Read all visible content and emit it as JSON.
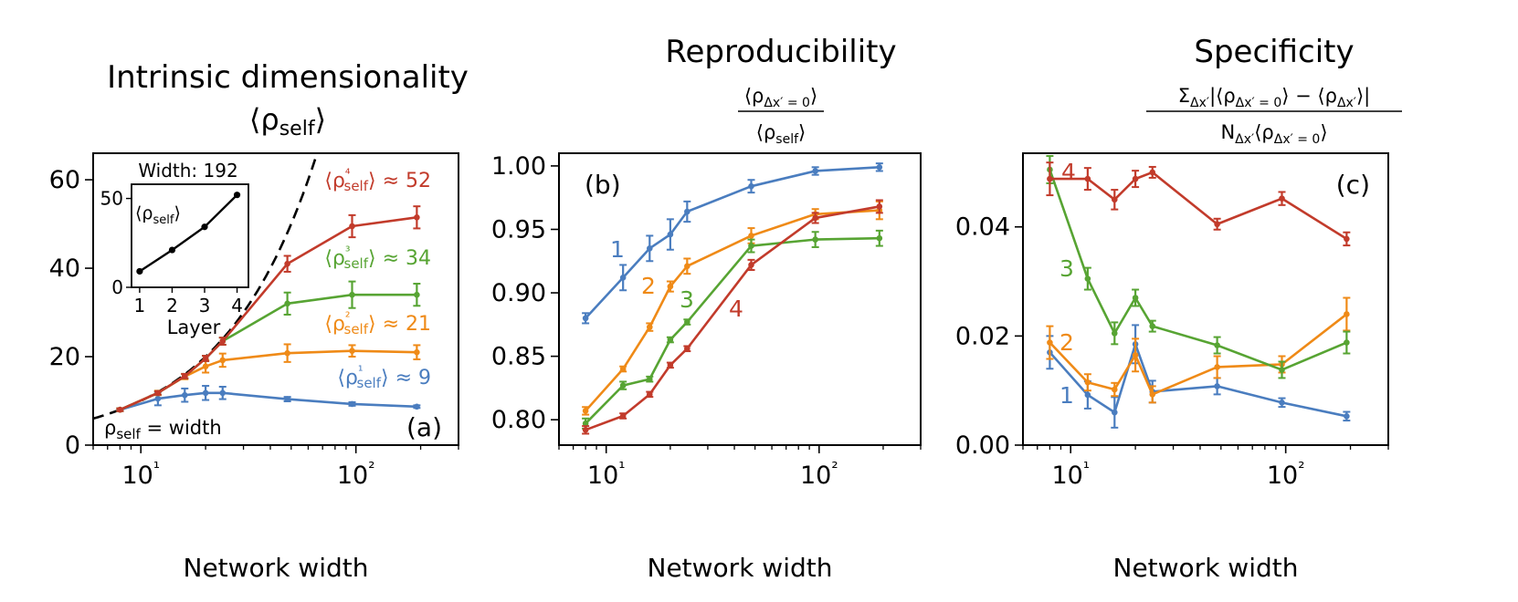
{
  "colors": {
    "layer1": "#4a7dbf",
    "layer2": "#ef8a17",
    "layer3": "#57a433",
    "layer4": "#c23b2b"
  },
  "chart_data": [
    {
      "type": "line",
      "panel": "(a)",
      "title": "Intrinsic dimensionality",
      "subtitle": "⟨ρself⟩",
      "xlabel": "Network width",
      "ylabel": "",
      "xscale": "log",
      "xlim": [
        6,
        300
      ],
      "ylim": [
        0,
        66
      ],
      "yticks": [
        0,
        20,
        40,
        60
      ],
      "xticks": [
        "10¹",
        "10²"
      ],
      "x": [
        8,
        12,
        16,
        20,
        24,
        48,
        96,
        192
      ],
      "series": [
        {
          "name": "⟨ρ¹self⟩ ≈ 9",
          "layer": "1",
          "values": [
            8,
            10.5,
            11.3,
            11.8,
            11.8,
            10.4,
            9.3,
            8.7
          ],
          "err": [
            0.3,
            1.5,
            1.5,
            1.6,
            1.4,
            0.5,
            0.4,
            0.3
          ]
        },
        {
          "name": "⟨ρ²self⟩ ≈ 21",
          "layer": "2",
          "values": [
            8,
            11.8,
            15.5,
            17.8,
            19.2,
            20.8,
            21.3,
            21
          ],
          "err": [
            0.3,
            0.5,
            0.6,
            1.4,
            1.5,
            2,
            1.3,
            1.6
          ]
        },
        {
          "name": "⟨ρ³self⟩ ≈ 34",
          "layer": "3",
          "values": [
            8,
            11.8,
            15.6,
            19.6,
            23.5,
            32,
            34,
            34
          ],
          "err": [
            0.3,
            0.4,
            0.5,
            0.6,
            0.8,
            2.5,
            3,
            2.5
          ]
        },
        {
          "name": "⟨ρ⁴self⟩ ≈ 52",
          "layer": "4",
          "values": [
            8,
            11.8,
            15.6,
            19.6,
            23.5,
            41,
            49.5,
            51.5
          ],
          "err": [
            0.3,
            0.4,
            0.5,
            0.6,
            0.8,
            1.8,
            2.5,
            2.5
          ]
        }
      ],
      "reference_line": {
        "label": "ρself = width",
        "style": "dashed",
        "equation": "y = x"
      },
      "inset": {
        "title": "Width: 192",
        "ylabel": "⟨ρself⟩",
        "xlabel": "Layer",
        "x": [
          1,
          2,
          3,
          4
        ],
        "values": [
          9,
          21,
          34,
          52
        ],
        "xlim": [
          0.75,
          4.35
        ],
        "ylim": [
          0,
          58
        ],
        "yticks": [
          0,
          50
        ],
        "xticks": [
          "1",
          "2",
          "3",
          "4"
        ]
      }
    },
    {
      "type": "line",
      "panel": "(b)",
      "title": "Reproducibility",
      "formula": {
        "numerator": "⟨ρΔx′ = 0⟩",
        "denominator": "⟨ρself⟩"
      },
      "xlabel": "Network width",
      "ylabel": "",
      "xscale": "log",
      "xlim": [
        6,
        300
      ],
      "ylim": [
        0.78,
        1.01
      ],
      "yticks": [
        "0.80",
        "0.85",
        "0.90",
        "0.95",
        "1.00"
      ],
      "xticks": [
        "10¹",
        "10²"
      ],
      "x": [
        8,
        12,
        16,
        20,
        24,
        48,
        96,
        192
      ],
      "series": [
        {
          "name": "1",
          "layer": "1",
          "values": [
            0.88,
            0.912,
            0.935,
            0.946,
            0.964,
            0.984,
            0.996,
            0.999
          ],
          "err": [
            0.004,
            0.01,
            0.01,
            0.012,
            0.008,
            0.005,
            0.003,
            0.003
          ]
        },
        {
          "name": "2",
          "layer": "2",
          "values": [
            0.807,
            0.84,
            0.873,
            0.905,
            0.921,
            0.945,
            0.962,
            0.965
          ],
          "err": [
            0.003,
            0.002,
            0.003,
            0.004,
            0.006,
            0.006,
            0.004,
            0.007
          ]
        },
        {
          "name": "3",
          "layer": "3",
          "values": [
            0.797,
            0.827,
            0.832,
            0.863,
            0.877,
            0.937,
            0.942,
            0.943
          ],
          "err": [
            0.004,
            0.003,
            0.002,
            0.002,
            0.002,
            0.005,
            0.006,
            0.006
          ]
        },
        {
          "name": "4",
          "layer": "4",
          "values": [
            0.792,
            0.803,
            0.82,
            0.843,
            0.856,
            0.922,
            0.959,
            0.968
          ],
          "err": [
            0.003,
            0.002,
            0.002,
            0.002,
            0.002,
            0.004,
            0.004,
            0.005
          ]
        }
      ]
    },
    {
      "type": "line",
      "panel": "(c)",
      "title": "Specificity",
      "formula": {
        "numerator": "ΣΔx′|⟨ρΔx′ = 0⟩ − ⟨ρΔx′⟩|",
        "denominator": "NΔx′⟨ρΔx′ = 0⟩"
      },
      "xlabel": "Network width",
      "ylabel": "",
      "xscale": "log",
      "xlim": [
        6,
        300
      ],
      "ylim": [
        0,
        0.0535
      ],
      "yticks": [
        "0.00",
        "0.02",
        "0.04"
      ],
      "xticks": [
        "10¹",
        "10²"
      ],
      "x": [
        8,
        12,
        16,
        20,
        24,
        48,
        96,
        192
      ],
      "series": [
        {
          "name": "1",
          "layer": "1",
          "values": [
            0.017,
            0.0092,
            0.006,
            0.0185,
            0.0098,
            0.0108,
            0.0078,
            0.0053
          ],
          "err": [
            0.003,
            0.0025,
            0.0028,
            0.0035,
            0.002,
            0.0015,
            0.0008,
            0.0008
          ]
        },
        {
          "name": "2",
          "layer": "2",
          "values": [
            0.0188,
            0.0115,
            0.0102,
            0.0165,
            0.0093,
            0.0143,
            0.0148,
            0.024
          ],
          "err": [
            0.003,
            0.0015,
            0.0012,
            0.003,
            0.0015,
            0.002,
            0.0015,
            0.003
          ]
        },
        {
          "name": "3",
          "layer": "3",
          "values": [
            0.0505,
            0.0305,
            0.0205,
            0.027,
            0.0218,
            0.0183,
            0.0138,
            0.0188
          ],
          "err": [
            0.0025,
            0.002,
            0.002,
            0.0015,
            0.001,
            0.0015,
            0.0015,
            0.002
          ]
        },
        {
          "name": "4",
          "layer": "4",
          "values": [
            0.0488,
            0.0488,
            0.045,
            0.0488,
            0.05,
            0.0405,
            0.0452,
            0.0378
          ],
          "err": [
            0.003,
            0.002,
            0.0018,
            0.0015,
            0.001,
            0.001,
            0.0012,
            0.0012
          ]
        }
      ]
    }
  ]
}
